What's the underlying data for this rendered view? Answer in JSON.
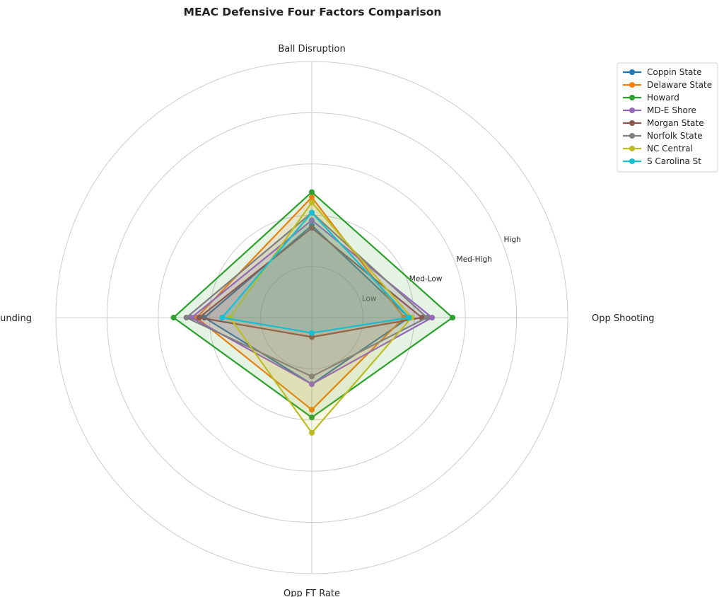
{
  "chart_data": {
    "type": "radar",
    "title": "MEAC Defensive Four Factors Comparison",
    "axes": [
      "Ball Disruption",
      "Opp Shooting",
      "Opp FT Rate",
      "Def Rebounding"
    ],
    "rlim": [
      0,
      5
    ],
    "ring_labels": [
      "Low",
      "Med-Low",
      "Med-High",
      "High"
    ],
    "ring_values": [
      1,
      2,
      3,
      4,
      5
    ],
    "grid": true,
    "legend_position": "top-right",
    "series": [
      {
        "name": "Coppin State",
        "color": "#1f77b4",
        "values": [
          1.8,
          1.9,
          1.3,
          2.1
        ]
      },
      {
        "name": "Delaware State",
        "color": "#ff7f0e",
        "values": [
          2.35,
          1.8,
          1.8,
          2.25
        ]
      },
      {
        "name": "Howard",
        "color": "#2ca02c",
        "values": [
          2.45,
          2.75,
          1.95,
          2.7
        ]
      },
      {
        "name": "MD-E Shore",
        "color": "#9467bd",
        "values": [
          1.9,
          2.35,
          1.3,
          2.35
        ]
      },
      {
        "name": "Morgan State",
        "color": "#8c564b",
        "values": [
          1.75,
          2.15,
          0.38,
          2.2
        ]
      },
      {
        "name": "Norfolk State",
        "color": "#7f7f7f",
        "values": [
          2.05,
          2.25,
          1.15,
          2.45
        ]
      },
      {
        "name": "NC Central",
        "color": "#bcbd22",
        "values": [
          2.25,
          1.95,
          2.25,
          1.6
        ]
      },
      {
        "name": "S Carolina St",
        "color": "#17becf",
        "values": [
          2.05,
          1.9,
          0.3,
          1.75
        ]
      }
    ]
  }
}
